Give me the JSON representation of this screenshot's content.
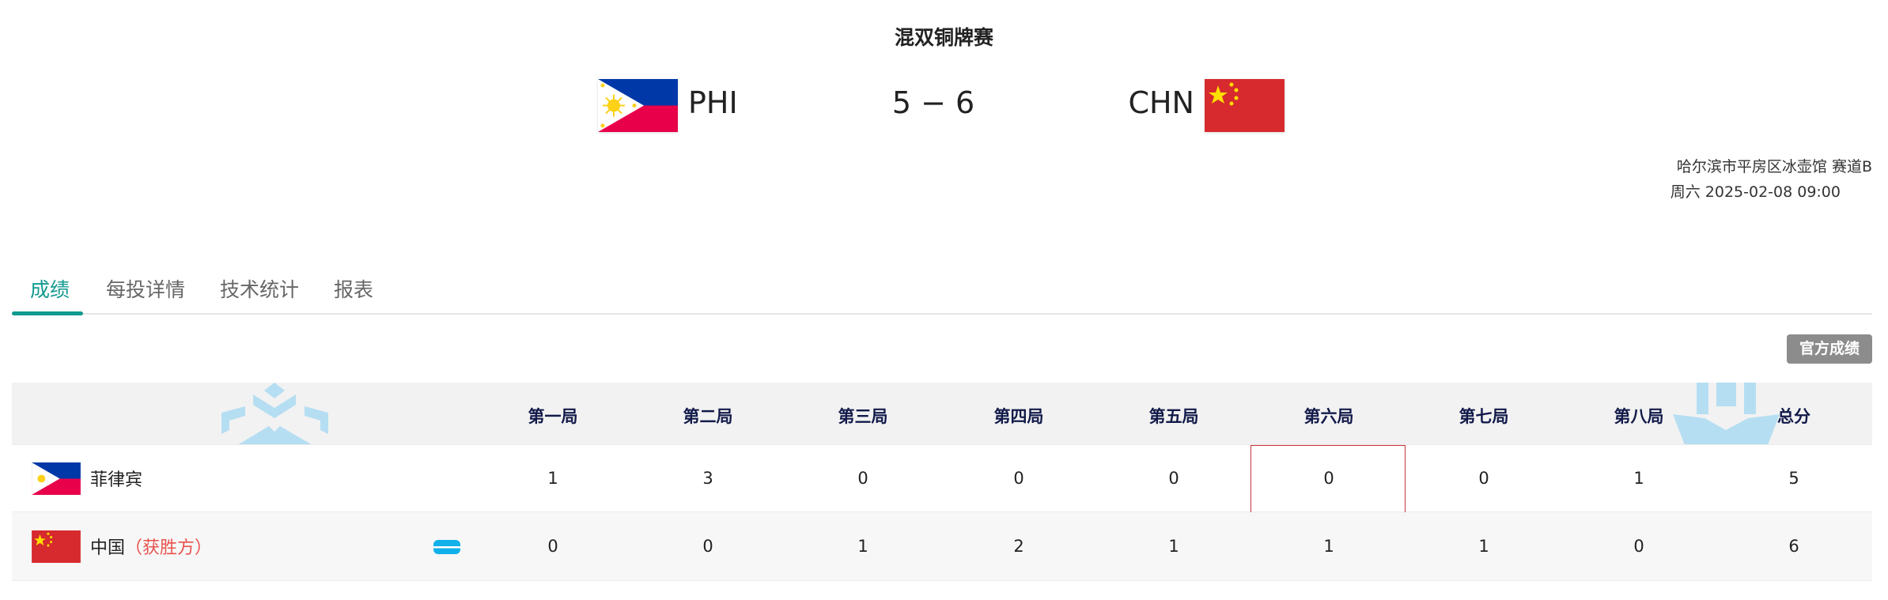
{
  "event_title": "混双铜牌赛",
  "home": {
    "code": "PHI",
    "name": "菲律宾",
    "score": "5"
  },
  "away": {
    "code": "CHN",
    "name": "中国",
    "score": "6",
    "winner_label": "（获胜方）"
  },
  "score_display": "5 − 6",
  "venue": "哈尔滨市平房区冰壶馆 赛道B",
  "datetime": "周六 2025-02-08 09:00",
  "tabs": [
    {
      "label": "成绩",
      "active": true
    },
    {
      "label": "每投详情"
    },
    {
      "label": "技术统计"
    },
    {
      "label": "报表"
    }
  ],
  "official_button": "官方成绩",
  "table": {
    "headers": [
      "第一局",
      "第二局",
      "第三局",
      "第四局",
      "第五局",
      "第六局",
      "第七局",
      "第八局",
      "总分"
    ],
    "rows": [
      {
        "team": "菲律宾",
        "scores": [
          "1",
          "3",
          "0",
          "0",
          "0",
          "0",
          "0",
          "1",
          "5"
        ]
      },
      {
        "team": "中国",
        "winner": "（获胜方）",
        "hammer_icon": "last-stone-icon",
        "scores": [
          "0",
          "0",
          "1",
          "2",
          "1",
          "1",
          "1",
          "0",
          "6"
        ]
      }
    ],
    "highlighted_end": "第六局"
  },
  "colors": {
    "accent": "#129a8f",
    "winner": "#e9534f",
    "header_text": "#121a4a",
    "hammer": "#10b0ea"
  }
}
